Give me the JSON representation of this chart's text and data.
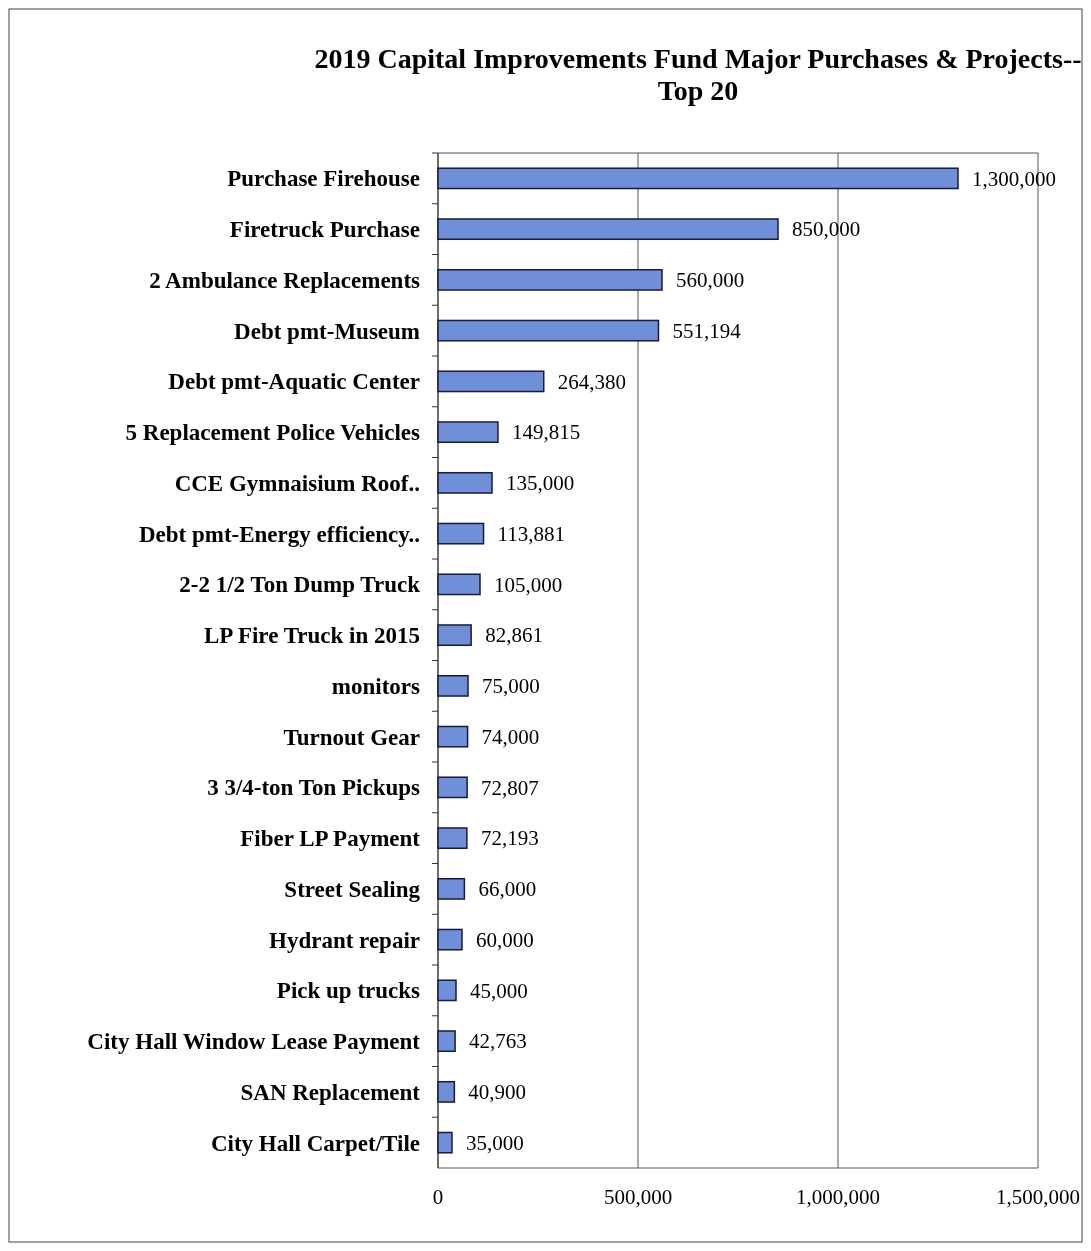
{
  "chart_data": {
    "type": "bar",
    "orientation": "horizontal",
    "title": "2019 Capital Improvements Fund Major Purchases & Projects--\nTop 20",
    "categories": [
      "Purchase Firehouse",
      "Firetruck Purchase",
      "2 Ambulance Replacements",
      "Debt pmt-Museum",
      "Debt pmt-Aquatic Center",
      "5 Replacement Police Vehicles",
      "CCE Gymnaisium Roof..",
      "Debt pmt-Energy efficiency..",
      "2-2 1/2 Ton Dump Truck",
      "LP Fire Truck in 2015",
      "monitors",
      "Turnout Gear",
      "3 3/4-ton Ton Pickups",
      "Fiber LP Payment",
      "Street Sealing",
      "Hydrant repair",
      "Pick up trucks",
      "City Hall Window Lease Payment",
      "SAN Replacement",
      "City Hall Carpet/Tile"
    ],
    "values": [
      1300000,
      850000,
      560000,
      551194,
      264380,
      149815,
      135000,
      113881,
      105000,
      82861,
      75000,
      74000,
      72807,
      72193,
      66000,
      60000,
      45000,
      42763,
      40900,
      35000
    ],
    "color": "#6f8fd8",
    "xlim": [
      0,
      1500000
    ],
    "xticks": [
      {
        "value": 0,
        "label": "0"
      },
      {
        "value": 500000,
        "label": "500,000"
      },
      {
        "value": 1000000,
        "label": "1,000,000"
      },
      {
        "value": 1500000,
        "label": "1,500,000"
      }
    ],
    "grid": "x",
    "value_labels": [
      "1,300,000",
      "850,000",
      "560,000",
      "551,194",
      "264,380",
      "149,815",
      "135,000",
      "113,881",
      "105,000",
      "82,861",
      "75,000",
      "74,000",
      "72,807",
      "72,193",
      "66,000",
      "60,000",
      "45,000",
      "42,763",
      "40,900",
      "35,000"
    ]
  }
}
